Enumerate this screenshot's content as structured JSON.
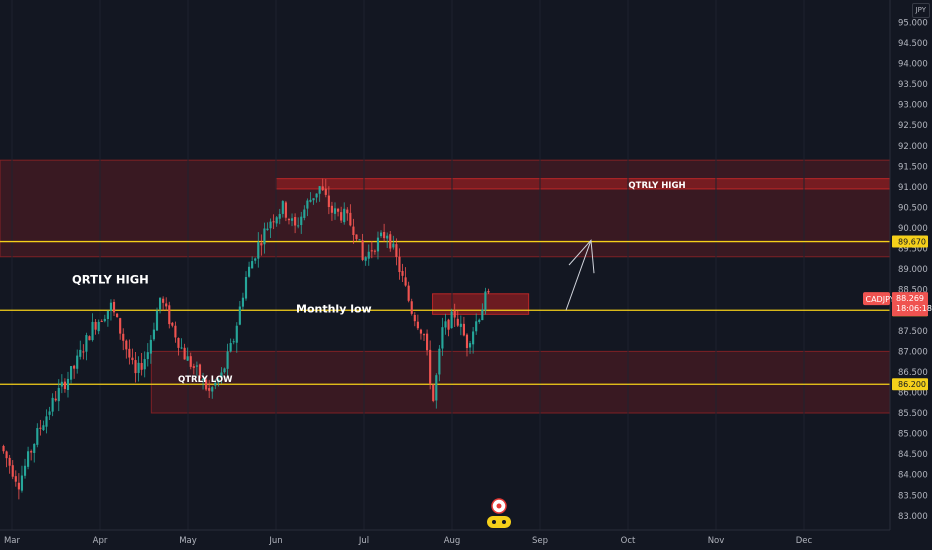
{
  "chart_data": {
    "type": "candlestick",
    "symbol_tag": "CADJPY",
    "currency": "JPY",
    "ylim": [
      82.85,
      95.35
    ],
    "y_ticks": [
      83.0,
      83.5,
      84.0,
      84.5,
      85.0,
      85.5,
      86.0,
      86.5,
      87.0,
      87.5,
      88.0,
      88.5,
      89.0,
      89.5,
      90.0,
      90.5,
      91.0,
      91.5,
      92.0,
      92.5,
      93.0,
      93.5,
      94.0,
      94.5,
      95.0
    ],
    "y_tick_labels": [
      "83.000",
      "83.500",
      "84.000",
      "84.500",
      "85.000",
      "85.500",
      "86.000",
      "86.500",
      "87.000",
      "87.500",
      "88.000",
      "88.500",
      "89.000",
      "89.500",
      "90.000",
      "90.500",
      "91.000",
      "91.500",
      "92.000",
      "92.500",
      "93.000",
      "93.500",
      "94.000",
      "94.500",
      "95.000"
    ],
    "x_labels": [
      "Mar",
      "Apr",
      "May",
      "Jun",
      "Jul",
      "Aug",
      "Sep",
      "Oct",
      "Nov",
      "Dec"
    ],
    "candle_trend": [
      [
        0,
        84.7
      ],
      [
        6,
        83.8
      ],
      [
        12,
        85.0
      ],
      [
        18,
        85.9
      ],
      [
        24,
        86.6
      ],
      [
        30,
        87.6
      ],
      [
        36,
        88.1
      ],
      [
        40,
        87.3
      ],
      [
        44,
        86.4
      ],
      [
        48,
        87.0
      ],
      [
        52,
        88.3
      ],
      [
        56,
        87.6
      ],
      [
        60,
        86.9
      ],
      [
        64,
        86.5
      ],
      [
        68,
        86.0
      ],
      [
        72,
        86.4
      ],
      [
        76,
        87.3
      ],
      [
        80,
        88.8
      ],
      [
        84,
        89.6
      ],
      [
        88,
        90.2
      ],
      [
        92,
        90.5
      ],
      [
        96,
        90.0
      ],
      [
        100,
        90.6
      ],
      [
        104,
        91.0
      ],
      [
        108,
        90.4
      ],
      [
        112,
        90.3
      ],
      [
        116,
        89.9
      ],
      [
        118,
        89.2
      ],
      [
        122,
        89.6
      ],
      [
        126,
        89.9
      ],
      [
        130,
        89.0
      ],
      [
        134,
        88.0
      ],
      [
        138,
        87.4
      ],
      [
        141,
        85.8
      ],
      [
        144,
        87.5
      ],
      [
        148,
        87.9
      ],
      [
        152,
        87.2
      ],
      [
        156,
        87.9
      ],
      [
        158,
        88.3
      ]
    ],
    "current_price": "88.269",
    "countdown": "18:06:18",
    "levels": [
      {
        "value": 89.67,
        "label": "89.670",
        "color": "#f5d01a"
      },
      {
        "value": 88.0,
        "label": "88.000",
        "color": "#f5d01a"
      },
      {
        "value": 86.2,
        "label": "86.200",
        "color": "#f5d01a"
      }
    ],
    "zones": [
      {
        "from": 89.3,
        "to": 91.65,
        "x_from": 0,
        "x_to": 1
      },
      {
        "from": 85.5,
        "to": 87.0,
        "x_from": 0.17,
        "x_to": 1
      },
      {
        "from": 90.95,
        "to": 91.2,
        "x_from": 0.31,
        "x_to": 1,
        "strong": true
      },
      {
        "from": 87.9,
        "to": 88.4,
        "x_from": 0.486,
        "x_to": 0.594,
        "strong": true
      }
    ],
    "annotations": [
      {
        "text": "QRTLY HIGH",
        "value": 88.6
      },
      {
        "text": "Monthly low",
        "value": 87.9
      },
      {
        "text": "QTRLY LOW",
        "value": 86.2
      },
      {
        "text": "QTRLY HIGH",
        "value": 91.05
      }
    ],
    "colors": {
      "background": "#131722",
      "up": "#26a69a",
      "down": "#ef5350",
      "level": "#f5d01a",
      "zone": "#8b1e22",
      "axis_text": "#b2b5be"
    }
  }
}
